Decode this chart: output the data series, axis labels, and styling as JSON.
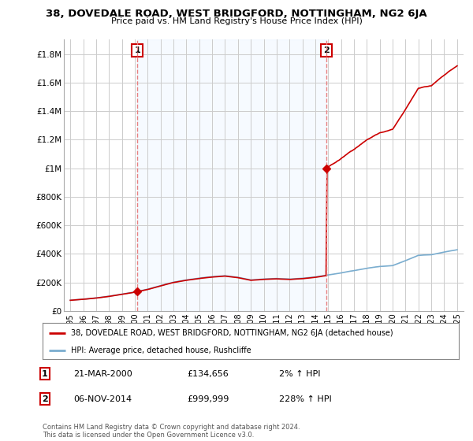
{
  "title": "38, DOVEDALE ROAD, WEST BRIDGFORD, NOTTINGHAM, NG2 6JA",
  "subtitle": "Price paid vs. HM Land Registry's House Price Index (HPI)",
  "legend_line1": "38, DOVEDALE ROAD, WEST BRIDGFORD, NOTTINGHAM, NG2 6JA (detached house)",
  "legend_line2": "HPI: Average price, detached house, Rushcliffe",
  "annotation1_label": "1",
  "annotation1_date": "21-MAR-2000",
  "annotation1_price": "£134,656",
  "annotation1_hpi": "2% ↑ HPI",
  "annotation2_label": "2",
  "annotation2_date": "06-NOV-2014",
  "annotation2_price": "£999,999",
  "annotation2_hpi": "228% ↑ HPI",
  "footer": "Contains HM Land Registry data © Crown copyright and database right 2024.\nThis data is licensed under the Open Government Licence v3.0.",
  "sale1_x": 2000.21,
  "sale1_y": 134656,
  "sale2_x": 2014.84,
  "sale2_y": 999999,
  "house_color": "#cc0000",
  "hpi_color": "#7aadcf",
  "vline_color": "#e88080",
  "annotation_box_color": "#cc0000",
  "shade_color": "#ddeeff",
  "grid_color": "#cccccc",
  "background_color": "#ffffff",
  "ylim": [
    0,
    1900000
  ],
  "xlim": [
    1994.5,
    2025.5
  ],
  "yticks": [
    0,
    200000,
    400000,
    600000,
    800000,
    1000000,
    1200000,
    1400000,
    1600000,
    1800000
  ],
  "ytick_labels": [
    "£0",
    "£200K",
    "£400K",
    "£600K",
    "£800K",
    "£1M",
    "£1.2M",
    "£1.4M",
    "£1.6M",
    "£1.8M"
  ],
  "xticks": [
    1995,
    1996,
    1997,
    1998,
    1999,
    2000,
    2001,
    2002,
    2003,
    2004,
    2005,
    2006,
    2007,
    2008,
    2009,
    2010,
    2011,
    2012,
    2013,
    2014,
    2015,
    2016,
    2017,
    2018,
    2019,
    2020,
    2021,
    2022,
    2023,
    2024,
    2025
  ]
}
